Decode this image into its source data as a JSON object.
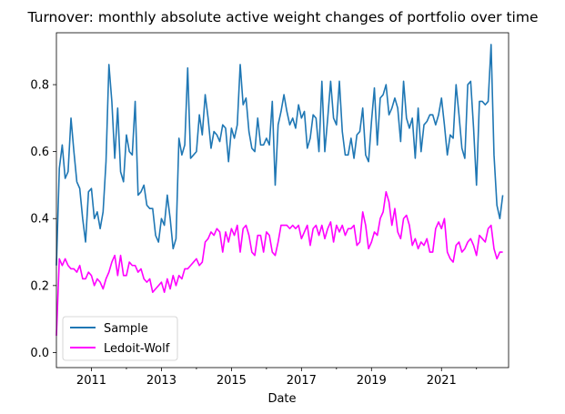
{
  "chart_data": {
    "type": "line",
    "title": "Turnover: monthly absolute active weight changes of portfolio over time",
    "xlabel": "Date",
    "ylabel": "",
    "xlim": [
      "2010-01",
      "2022-12"
    ],
    "ylim": [
      -0.045,
      0.955
    ],
    "x_ticks": [
      {
        "date": "2011-01",
        "label": "2011"
      },
      {
        "date": "2013-01",
        "label": "2013"
      },
      {
        "date": "2015-01",
        "label": "2015"
      },
      {
        "date": "2017-01",
        "label": "2017"
      },
      {
        "date": "2019-01",
        "label": "2019"
      },
      {
        "date": "2021-01",
        "label": "2021"
      }
    ],
    "y_ticks": [
      0.0,
      0.2,
      0.4,
      0.6,
      0.8
    ],
    "y_tick_labels": [
      "0.0",
      "0.2",
      "0.4",
      "0.6",
      "0.8"
    ],
    "grid": false,
    "legend_position": "lower-left",
    "start_month": "2010-01",
    "series": [
      {
        "name": "Sample",
        "color": "#1f77b4",
        "values": [
          0.26,
          0.55,
          0.62,
          0.52,
          0.54,
          0.7,
          0.6,
          0.51,
          0.49,
          0.4,
          0.33,
          0.48,
          0.49,
          0.4,
          0.42,
          0.37,
          0.42,
          0.57,
          0.86,
          0.75,
          0.58,
          0.73,
          0.54,
          0.51,
          0.65,
          0.6,
          0.59,
          0.75,
          0.47,
          0.48,
          0.5,
          0.44,
          0.43,
          0.43,
          0.35,
          0.33,
          0.4,
          0.38,
          0.47,
          0.4,
          0.31,
          0.34,
          0.64,
          0.59,
          0.62,
          0.85,
          0.58,
          0.59,
          0.6,
          0.71,
          0.65,
          0.77,
          0.7,
          0.61,
          0.66,
          0.65,
          0.63,
          0.68,
          0.67,
          0.57,
          0.67,
          0.64,
          0.68,
          0.86,
          0.74,
          0.76,
          0.66,
          0.61,
          0.6,
          0.7,
          0.62,
          0.62,
          0.64,
          0.62,
          0.75,
          0.5,
          0.68,
          0.72,
          0.77,
          0.72,
          0.68,
          0.7,
          0.67,
          0.74,
          0.7,
          0.72,
          0.61,
          0.64,
          0.71,
          0.7,
          0.6,
          0.81,
          0.6,
          0.7,
          0.81,
          0.7,
          0.68,
          0.81,
          0.66,
          0.59,
          0.59,
          0.64,
          0.58,
          0.65,
          0.66,
          0.73,
          0.59,
          0.57,
          0.69,
          0.79,
          0.62,
          0.76,
          0.77,
          0.8,
          0.71,
          0.73,
          0.76,
          0.73,
          0.63,
          0.81,
          0.7,
          0.67,
          0.7,
          0.58,
          0.73,
          0.6,
          0.68,
          0.69,
          0.71,
          0.71,
          0.68,
          0.71,
          0.76,
          0.68,
          0.59,
          0.65,
          0.64,
          0.8,
          0.71,
          0.61,
          0.58,
          0.8,
          0.81,
          0.67,
          0.5,
          0.75,
          0.75,
          0.74,
          0.75,
          0.92,
          0.59,
          0.44,
          0.4,
          0.47
        ]
      },
      {
        "name": "Ledoit-Wolf",
        "color": "#ff00ff",
        "values": [
          0.05,
          0.28,
          0.26,
          0.28,
          0.26,
          0.25,
          0.25,
          0.24,
          0.26,
          0.22,
          0.22,
          0.24,
          0.23,
          0.2,
          0.22,
          0.21,
          0.19,
          0.22,
          0.24,
          0.27,
          0.29,
          0.23,
          0.29,
          0.23,
          0.23,
          0.27,
          0.26,
          0.26,
          0.24,
          0.25,
          0.22,
          0.21,
          0.22,
          0.18,
          0.19,
          0.2,
          0.21,
          0.18,
          0.22,
          0.19,
          0.23,
          0.2,
          0.23,
          0.22,
          0.25,
          0.25,
          0.26,
          0.27,
          0.28,
          0.26,
          0.27,
          0.33,
          0.34,
          0.36,
          0.35,
          0.37,
          0.36,
          0.3,
          0.36,
          0.33,
          0.37,
          0.35,
          0.38,
          0.3,
          0.37,
          0.38,
          0.35,
          0.3,
          0.29,
          0.35,
          0.35,
          0.3,
          0.36,
          0.35,
          0.3,
          0.29,
          0.33,
          0.38,
          0.38,
          0.38,
          0.37,
          0.38,
          0.37,
          0.38,
          0.34,
          0.36,
          0.38,
          0.32,
          0.37,
          0.38,
          0.35,
          0.38,
          0.34,
          0.37,
          0.39,
          0.33,
          0.38,
          0.36,
          0.38,
          0.35,
          0.37,
          0.37,
          0.38,
          0.32,
          0.33,
          0.42,
          0.38,
          0.31,
          0.33,
          0.36,
          0.35,
          0.4,
          0.42,
          0.48,
          0.45,
          0.38,
          0.43,
          0.36,
          0.34,
          0.4,
          0.41,
          0.38,
          0.32,
          0.34,
          0.31,
          0.33,
          0.32,
          0.34,
          0.3,
          0.3,
          0.37,
          0.39,
          0.37,
          0.4,
          0.3,
          0.28,
          0.27,
          0.32,
          0.33,
          0.3,
          0.31,
          0.33,
          0.34,
          0.32,
          0.29,
          0.35,
          0.34,
          0.33,
          0.37,
          0.38,
          0.31,
          0.28,
          0.3,
          0.3
        ]
      }
    ]
  }
}
